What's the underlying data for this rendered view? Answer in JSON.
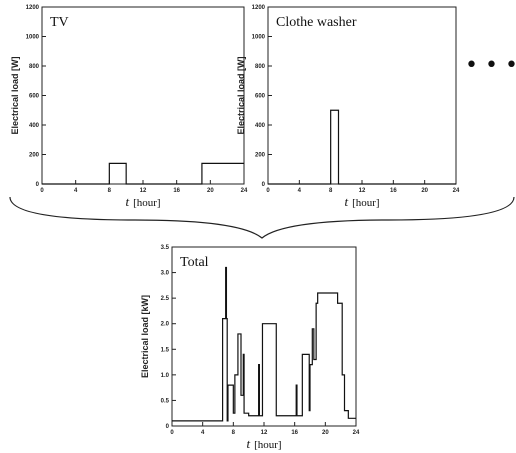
{
  "ellipsis": "• • •",
  "chart_data": [
    {
      "type": "line",
      "title": "TV",
      "ylabel": "Electrical load [W]",
      "xlabel_var": "t",
      "xlabel_unit": "[hour]",
      "xlim": [
        0,
        24
      ],
      "ylim": [
        0,
        1200
      ],
      "xticks": [
        0,
        4,
        8,
        12,
        16,
        20,
        24
      ],
      "yticks": [
        0,
        200,
        400,
        600,
        800,
        1000,
        1200
      ],
      "series": [
        {
          "x": [
            0,
            8,
            8,
            10,
            10,
            19,
            19,
            24
          ],
          "y": [
            0,
            0,
            140,
            140,
            0,
            0,
            140,
            140
          ]
        }
      ]
    },
    {
      "type": "line",
      "title": "Clothe washer",
      "ylabel": "Electrical load [W]",
      "xlabel_var": "t",
      "xlabel_unit": "[hour]",
      "xlim": [
        0,
        24
      ],
      "ylim": [
        0,
        1200
      ],
      "xticks": [
        0,
        4,
        8,
        12,
        16,
        20,
        24
      ],
      "yticks": [
        0,
        200,
        400,
        600,
        800,
        1000,
        1200
      ],
      "series": [
        {
          "x": [
            0,
            8,
            8,
            9,
            9,
            24
          ],
          "y": [
            0,
            0,
            500,
            500,
            0,
            0
          ]
        }
      ]
    },
    {
      "type": "line",
      "title": "Total",
      "ylabel": "Electrical load [kW]",
      "xlabel_var": "t",
      "xlabel_unit": "[hour]",
      "xlim": [
        0,
        24
      ],
      "ylim": [
        0,
        3.5
      ],
      "xticks": [
        0,
        4,
        8,
        12,
        16,
        20,
        24
      ],
      "yticks": [
        0,
        0.5,
        1.0,
        1.5,
        2.0,
        2.5,
        3.0,
        3.5
      ],
      "ytick_labels": [
        "0",
        "0.5",
        "1.0",
        "1.5",
        "2.0",
        "2.5",
        "3.0",
        "3.5"
      ],
      "series": [
        {
          "x": [
            0,
            6.6,
            6.6,
            7.0,
            7.0,
            7.1,
            7.1,
            7.2,
            7.2,
            7.3,
            7.3,
            8.0,
            8.0,
            8.2,
            8.2,
            8.6,
            8.6,
            9.0,
            9.0,
            9.3,
            9.3,
            9.4,
            9.4,
            10.0,
            10.0,
            11.3,
            11.3,
            11.4,
            11.4,
            11.8,
            11.8,
            12.0,
            12.0,
            13.6,
            13.6,
            16.2,
            16.2,
            16.3,
            16.3,
            17.0,
            17.0,
            17.9,
            17.9,
            18.0,
            18.0,
            18.3,
            18.3,
            18.5,
            18.5,
            18.8,
            18.8,
            19.0,
            19.0,
            20.8,
            20.8,
            21.6,
            21.6,
            22.2,
            22.2,
            22.5,
            22.5,
            23.0,
            23.0,
            24.0
          ],
          "y": [
            0.1,
            0.1,
            2.1,
            2.1,
            3.1,
            3.1,
            2.1,
            2.1,
            0.1,
            0.1,
            0.8,
            0.8,
            0.25,
            0.25,
            1.0,
            1.0,
            1.8,
            1.8,
            0.6,
            0.6,
            1.4,
            1.4,
            0.25,
            0.25,
            0.2,
            0.2,
            1.2,
            1.2,
            0.2,
            0.2,
            2.0,
            2.0,
            2.0,
            2.0,
            0.2,
            0.2,
            0.8,
            0.8,
            0.2,
            0.2,
            1.4,
            1.4,
            0.3,
            0.3,
            1.2,
            1.2,
            1.9,
            1.9,
            1.3,
            1.3,
            2.4,
            2.4,
            2.6,
            2.6,
            2.6,
            2.6,
            2.4,
            2.4,
            1.0,
            1.0,
            0.3,
            0.3,
            0.15,
            0.15
          ]
        }
      ]
    }
  ]
}
